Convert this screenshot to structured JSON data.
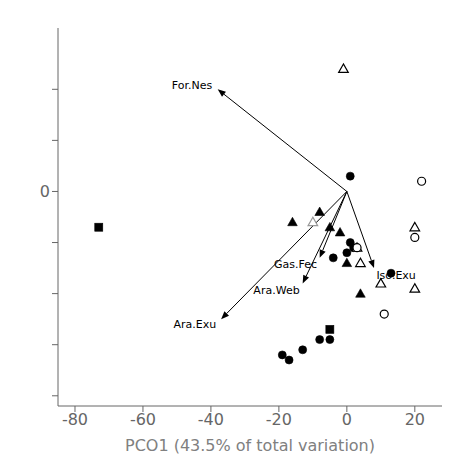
{
  "chart_data": {
    "type": "scatter",
    "xlabel": "PCO1 (43.5% of total variation)",
    "xlim": [
      -85,
      28
    ],
    "ylim": [
      -42,
      32
    ],
    "xticks": [
      -80,
      -60,
      -40,
      -20,
      0,
      20
    ],
    "yticks": [
      {
        "value": 20,
        "label": null
      },
      {
        "value": 10,
        "label": null
      },
      0,
      {
        "value": -10,
        "label": null
      },
      {
        "value": -20,
        "label": null
      },
      {
        "value": -30,
        "label": null
      },
      {
        "value": -40,
        "label": null
      }
    ],
    "grid": false,
    "series": [
      {
        "marker": "circle",
        "color": "#000000",
        "x": [
          -19,
          -17,
          -13,
          -8,
          -5,
          -4,
          0,
          1,
          2,
          1,
          13
        ],
        "values": [
          -32,
          -33,
          -31,
          -29,
          -29,
          -13,
          -12,
          -10,
          -11,
          3,
          -16
        ]
      },
      {
        "marker": "square",
        "color": "#000000",
        "x": [
          -73,
          -5
        ],
        "values": [
          -7,
          -27
        ]
      },
      {
        "marker": "triangle",
        "color": "#000000",
        "x": [
          -16,
          -8,
          -5,
          -2,
          0,
          4
        ],
        "values": [
          -6,
          -4,
          -7,
          -8,
          -14,
          -20
        ]
      },
      {
        "marker": "triangle-open",
        "color": "#000000",
        "x": [
          -1,
          4,
          10,
          20,
          20,
          3
        ],
        "values": [
          24,
          -14,
          -18,
          -19,
          -7,
          -11
        ]
      },
      {
        "marker": "circle-open",
        "color": "#000000",
        "x": [
          3,
          11,
          20,
          22
        ],
        "values": [
          -11,
          -24,
          -9,
          2
        ]
      },
      {
        "marker": "triangle-open",
        "color": "#999999",
        "x": [
          -10
        ],
        "values": [
          -6
        ]
      }
    ],
    "annotations": [
      {
        "label": "For.Nes",
        "start": [
          0,
          0
        ],
        "end": [
          -38,
          20
        ]
      },
      {
        "label": "Ara.Exu",
        "start": [
          0,
          0
        ],
        "end": [
          -37,
          -25
        ]
      },
      {
        "label": "Gas.Fec",
        "start": [
          0,
          0
        ],
        "end": [
          -8,
          -13
        ]
      },
      {
        "label": "Ara.Web",
        "start": [
          0,
          0
        ],
        "end": [
          -13,
          -18
        ]
      },
      {
        "label": "Iso.Exu",
        "start": [
          0,
          0
        ],
        "end": [
          8,
          -15
        ]
      }
    ]
  }
}
